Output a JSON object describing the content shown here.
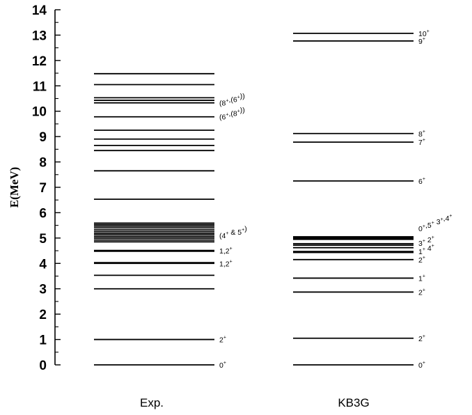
{
  "chart_data": {
    "type": "level-scheme",
    "ylabel": "E(MeV)",
    "ylim": [
      0,
      14
    ],
    "yticks": [
      "0",
      "1",
      "2",
      "3",
      "4",
      "5",
      "6",
      "7",
      "8",
      "9",
      "10",
      "11",
      "12",
      "13",
      "14"
    ],
    "columns": [
      {
        "name": "Exp.",
        "levels": [
          0,
          1.0,
          3.0,
          3.53,
          4.0,
          4.03,
          4.48,
          4.51,
          4.85,
          4.92,
          4.99,
          5.05,
          5.12,
          5.18,
          5.25,
          5.32,
          5.4,
          5.47,
          5.53,
          5.59,
          6.53,
          7.65,
          8.45,
          8.65,
          8.9,
          9.25,
          9.78,
          10.33,
          10.43,
          10.53,
          11.05,
          11.48
        ],
        "annotations": [
          {
            "energy": 0,
            "label": "0",
            "sup": "+"
          },
          {
            "energy": 1.0,
            "label": "2",
            "sup": "+"
          },
          {
            "energy": 4.0,
            "label": "1,2",
            "sup": "+"
          },
          {
            "energy": 4.5,
            "label": "1,2",
            "sup": "+"
          },
          {
            "energy": 5.1,
            "parts": [
              {
                "t": "(4"
              },
              {
                "s": "+"
              },
              {
                "t": " & 5"
              },
              {
                "s": "+"
              },
              {
                "t": ")"
              }
            ]
          },
          {
            "energy": 9.78,
            "parts": [
              {
                "t": "(6"
              },
              {
                "s": "+"
              },
              {
                "t": ",(8"
              },
              {
                "s": "+"
              },
              {
                "t": "))"
              }
            ]
          },
          {
            "energy": 10.33,
            "parts": [
              {
                "t": "(8"
              },
              {
                "s": "+"
              },
              {
                "t": ",(6"
              },
              {
                "s": "+"
              },
              {
                "t": "))"
              }
            ]
          }
        ]
      },
      {
        "name": "KB3G",
        "levels": [
          0,
          1.05,
          2.87,
          3.42,
          4.15,
          4.43,
          4.47,
          4.62,
          4.72,
          4.78,
          4.95,
          4.99,
          5.02,
          5.05,
          7.25,
          8.78,
          9.12,
          12.77,
          13.07
        ],
        "annotations": [
          {
            "energy": 0,
            "label": "0",
            "sup": "+"
          },
          {
            "energy": 1.05,
            "label": "2",
            "sup": "+"
          },
          {
            "energy": 2.87,
            "label": "2",
            "sup": "+"
          },
          {
            "energy": 3.42,
            "label": "1",
            "sup": "+"
          },
          {
            "energy": 4.15,
            "label": "2",
            "sup": "+"
          },
          {
            "energy": 4.48,
            "parts": [
              {
                "t": "1"
              },
              {
                "s": "+"
              },
              {
                "t": "   4"
              },
              {
                "s": "+"
              }
            ]
          },
          {
            "energy": 4.8,
            "parts": [
              {
                "t": "3"
              },
              {
                "s": "+"
              },
              {
                "t": "  2"
              },
              {
                "s": "+"
              }
            ]
          },
          {
            "energy": 5.38,
            "parts": [
              {
                "t": "0"
              },
              {
                "s": "+"
              },
              {
                "t": ",5"
              },
              {
                "s": "+"
              },
              {
                "t": " 3"
              },
              {
                "s": "+"
              },
              {
                "t": ",4"
              },
              {
                "s": "+"
              }
            ]
          },
          {
            "energy": 7.25,
            "label": "6",
            "sup": "+"
          },
          {
            "energy": 8.78,
            "label": "7",
            "sup": "+"
          },
          {
            "energy": 9.12,
            "label": "8",
            "sup": "+"
          },
          {
            "energy": 12.77,
            "label": "9",
            "sup": "+"
          },
          {
            "energy": 13.07,
            "label": "10",
            "sup": "+"
          }
        ]
      }
    ]
  }
}
